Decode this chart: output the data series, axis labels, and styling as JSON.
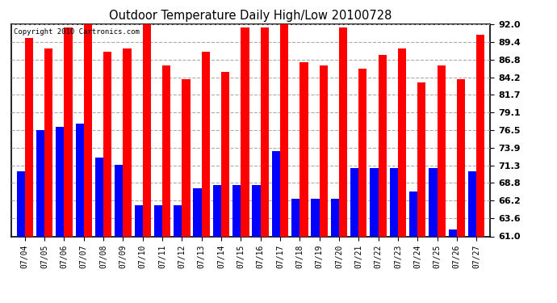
{
  "title": "Outdoor Temperature Daily High/Low 20100728",
  "copyright": "Copyright 2010 Cartronics.com",
  "dates": [
    "07/04",
    "07/05",
    "07/06",
    "07/07",
    "07/08",
    "07/09",
    "07/10",
    "07/11",
    "07/12",
    "07/13",
    "07/14",
    "07/15",
    "07/16",
    "07/17",
    "07/18",
    "07/19",
    "07/20",
    "07/21",
    "07/22",
    "07/23",
    "07/24",
    "07/25",
    "07/26",
    "07/27"
  ],
  "highs": [
    90.0,
    88.5,
    91.5,
    92.5,
    88.0,
    88.5,
    92.0,
    86.0,
    84.0,
    88.0,
    85.0,
    91.5,
    91.5,
    92.5,
    86.5,
    86.0,
    91.5,
    85.5,
    87.5,
    88.5,
    83.5,
    86.0,
    84.0,
    90.5
  ],
  "lows": [
    70.5,
    76.5,
    77.0,
    77.5,
    72.5,
    71.5,
    65.5,
    65.5,
    65.5,
    68.0,
    68.5,
    68.5,
    68.5,
    73.5,
    66.5,
    66.5,
    66.5,
    71.0,
    71.0,
    71.0,
    67.5,
    71.0,
    62.0,
    70.5
  ],
  "bar_width": 0.42,
  "high_color": "#ff0000",
  "low_color": "#0000ff",
  "bg_color": "#ffffff",
  "grid_color": "#aaaaaa",
  "yticks": [
    61.0,
    63.6,
    66.2,
    68.8,
    71.3,
    73.9,
    76.5,
    79.1,
    81.7,
    84.2,
    86.8,
    89.4,
    92.0
  ],
  "ymin": 61.0,
  "ymax": 92.0,
  "figwidth": 6.9,
  "figheight": 3.75,
  "dpi": 100
}
